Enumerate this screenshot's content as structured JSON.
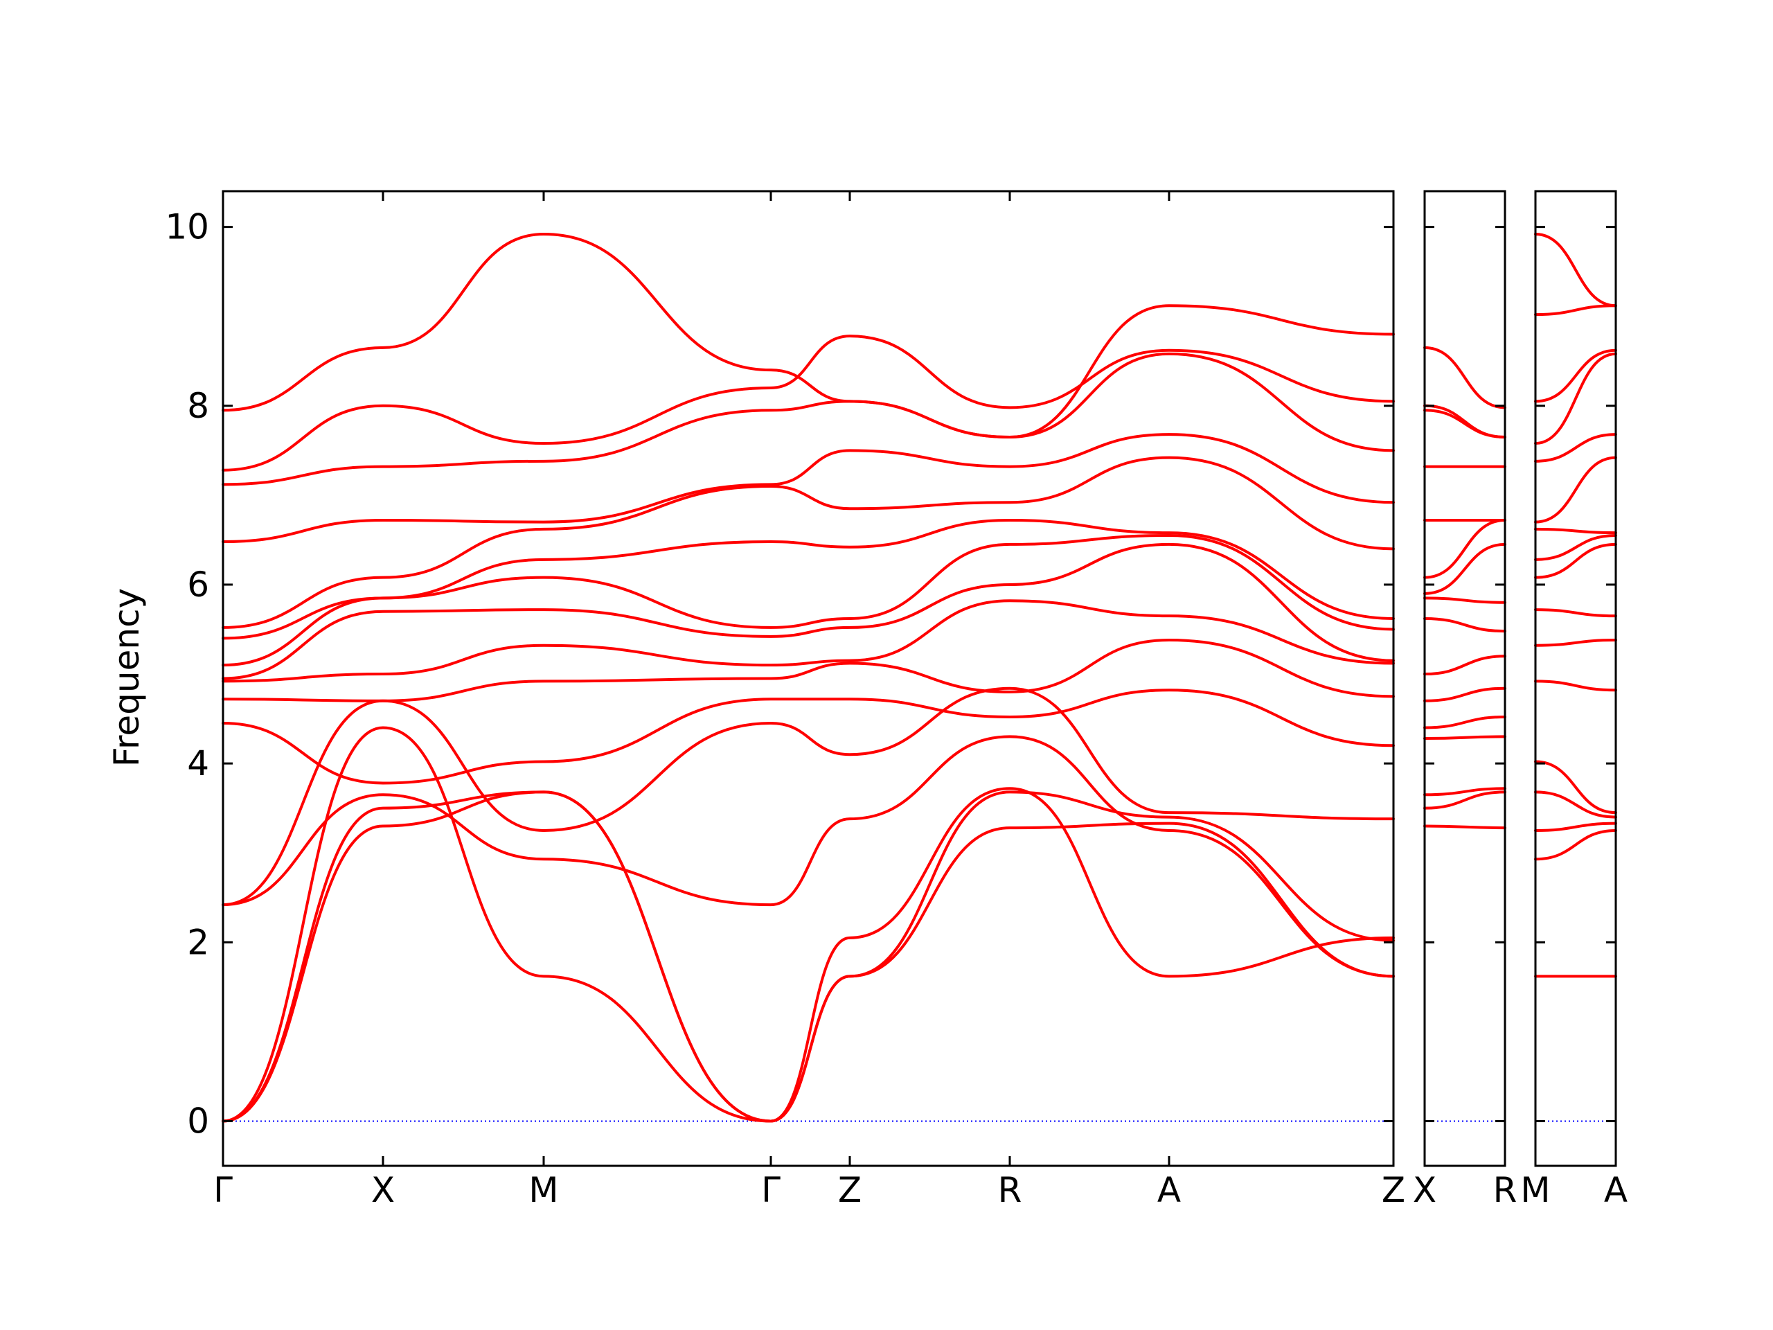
{
  "chart_data": {
    "type": "line",
    "title": "",
    "ylabel": "Frequency",
    "ylim": [
      -0.5,
      10.4
    ],
    "yticks": [
      0,
      2,
      4,
      6,
      8,
      10
    ],
    "ytick_labels": [
      "0",
      "2",
      "4",
      "6",
      "8",
      "10"
    ],
    "zero_line": {
      "value": 0,
      "color": "#0000ff",
      "style": "dotted"
    },
    "band_color": "#ff0000",
    "grid": false,
    "legend": "none",
    "panels": [
      {
        "xlabels": [
          "Γ",
          "X",
          "M",
          "Γ",
          "Z",
          "R",
          "A",
          "Z"
        ],
        "series": [
          {
            "values": [
              0,
              3.3,
              3.68,
              0,
              1.62,
              3.28,
              3.33,
              1.62
            ]
          },
          {
            "values": [
              0,
              3.5,
              3.68,
              0,
              1.62,
              3.68,
              3.4,
              2.02
            ]
          },
          {
            "values": [
              0,
              4.4,
              1.62,
              0,
              2.05,
              3.72,
              1.62,
              2.05
            ]
          },
          {
            "values": [
              2.42,
              3.65,
              2.93,
              2.42,
              3.38,
              4.3,
              3.25,
              1.62
            ]
          },
          {
            "values": [
              2.42,
              4.7,
              3.25,
              4.45,
              4.1,
              4.84,
              3.45,
              3.38
            ]
          },
          {
            "values": [
              4.45,
              3.78,
              4.02,
              4.72,
              4.72,
              4.52,
              4.82,
              4.2
            ]
          },
          {
            "values": [
              4.72,
              4.7,
              4.92,
              4.95,
              5.12,
              4.8,
              5.38,
              4.75
            ]
          },
          {
            "values": [
              4.92,
              5.0,
              5.32,
              5.1,
              5.15,
              5.82,
              5.65,
              5.12
            ]
          },
          {
            "values": [
              4.95,
              5.7,
              5.72,
              5.42,
              5.52,
              6.0,
              6.45,
              5.15
            ]
          },
          {
            "values": [
              5.1,
              5.85,
              6.08,
              5.52,
              5.62,
              6.45,
              6.55,
              5.5
            ]
          },
          {
            "values": [
              5.4,
              5.85,
              6.28,
              6.48,
              6.42,
              6.72,
              6.58,
              5.62
            ]
          },
          {
            "values": [
              5.52,
              6.08,
              6.62,
              7.1,
              6.85,
              6.92,
              7.42,
              6.4
            ]
          },
          {
            "values": [
              6.48,
              6.72,
              6.7,
              7.12,
              7.5,
              7.32,
              7.68,
              6.92
            ]
          },
          {
            "values": [
              7.12,
              7.32,
              7.38,
              7.95,
              8.05,
              7.65,
              8.58,
              7.5
            ]
          },
          {
            "values": [
              7.28,
              8.0,
              7.58,
              8.2,
              8.78,
              7.98,
              8.62,
              8.05
            ]
          },
          {
            "values": [
              7.95,
              8.65,
              9.92,
              8.4,
              8.05,
              7.65,
              9.12,
              8.8
            ]
          }
        ]
      },
      {
        "xlabels": [
          "X",
          "R"
        ],
        "series": [
          {
            "values": [
              3.3,
              3.28
            ]
          },
          {
            "values": [
              3.5,
              3.68
            ]
          },
          {
            "values": [
              3.65,
              3.72
            ]
          },
          {
            "values": [
              4.28,
              4.3
            ]
          },
          {
            "values": [
              4.4,
              4.52
            ]
          },
          {
            "values": [
              4.7,
              4.84
            ]
          },
          {
            "values": [
              5.0,
              5.2
            ]
          },
          {
            "values": [
              5.62,
              5.48
            ]
          },
          {
            "values": [
              5.85,
              5.8
            ]
          },
          {
            "values": [
              5.9,
              6.45
            ]
          },
          {
            "values": [
              6.08,
              6.72
            ]
          },
          {
            "values": [
              6.72,
              6.72
            ]
          },
          {
            "values": [
              7.32,
              7.32
            ]
          },
          {
            "values": [
              7.95,
              7.65
            ]
          },
          {
            "values": [
              8.0,
              7.65
            ]
          },
          {
            "values": [
              8.65,
              7.98
            ]
          }
        ]
      },
      {
        "xlabels": [
          "M",
          "A"
        ],
        "series": [
          {
            "values": [
              1.62,
              1.62
            ]
          },
          {
            "values": [
              2.93,
              3.25
            ]
          },
          {
            "values": [
              3.25,
              3.33
            ]
          },
          {
            "values": [
              3.68,
              3.4
            ]
          },
          {
            "values": [
              4.02,
              3.45
            ]
          },
          {
            "values": [
              4.92,
              4.82
            ]
          },
          {
            "values": [
              5.32,
              5.38
            ]
          },
          {
            "values": [
              5.72,
              5.65
            ]
          },
          {
            "values": [
              6.08,
              6.45
            ]
          },
          {
            "values": [
              6.28,
              6.55
            ]
          },
          {
            "values": [
              6.62,
              6.58
            ]
          },
          {
            "values": [
              6.7,
              7.42
            ]
          },
          {
            "values": [
              7.38,
              7.68
            ]
          },
          {
            "values": [
              7.58,
              8.58
            ]
          },
          {
            "values": [
              8.05,
              8.62
            ]
          },
          {
            "values": [
              9.02,
              9.12
            ]
          },
          {
            "values": [
              9.92,
              9.12
            ]
          }
        ]
      }
    ]
  }
}
